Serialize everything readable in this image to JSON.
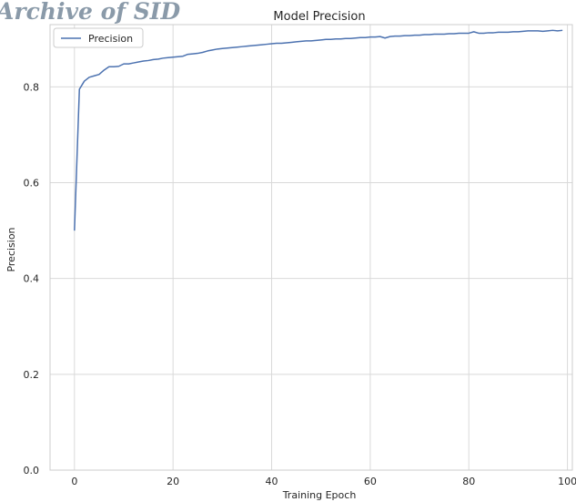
{
  "watermark": "Archive of SID",
  "chart_data": {
    "type": "line",
    "title": "Model Precision",
    "xlabel": "Training Epoch",
    "ylabel": "Precision",
    "xlim": [
      -4.95,
      101
    ],
    "ylim": [
      0.0,
      0.93
    ],
    "xticks": [
      0,
      20,
      40,
      60,
      80,
      100
    ],
    "xtick_labels": [
      "0",
      "20",
      "40",
      "60",
      "80",
      "100"
    ],
    "yticks": [
      0.0,
      0.2,
      0.4,
      0.6,
      0.8
    ],
    "ytick_labels": [
      "0.0",
      "0.2",
      "0.4",
      "0.6",
      "0.8"
    ],
    "grid": true,
    "legend": "top-left",
    "colors": {
      "line": "#4c72b0",
      "grid": "#d9d9d9"
    },
    "series": [
      {
        "name": "Precision",
        "x": [
          0,
          1,
          2,
          3,
          4,
          5,
          6,
          7,
          8,
          9,
          10,
          11,
          12,
          13,
          14,
          15,
          16,
          17,
          18,
          19,
          20,
          21,
          22,
          23,
          24,
          25,
          26,
          27,
          28,
          29,
          30,
          31,
          32,
          33,
          34,
          35,
          36,
          37,
          38,
          39,
          40,
          41,
          42,
          43,
          44,
          45,
          46,
          47,
          48,
          49,
          50,
          51,
          52,
          53,
          54,
          55,
          56,
          57,
          58,
          59,
          60,
          61,
          62,
          63,
          64,
          65,
          66,
          67,
          68,
          69,
          70,
          71,
          72,
          73,
          74,
          75,
          76,
          77,
          78,
          79,
          80,
          81,
          82,
          83,
          84,
          85,
          86,
          87,
          88,
          89,
          90,
          91,
          92,
          93,
          94,
          95,
          96,
          97,
          98,
          99
        ],
        "y": [
          0.5,
          0.795,
          0.812,
          0.82,
          0.823,
          0.826,
          0.835,
          0.842,
          0.842,
          0.843,
          0.848,
          0.848,
          0.85,
          0.852,
          0.854,
          0.855,
          0.857,
          0.858,
          0.86,
          0.861,
          0.862,
          0.863,
          0.864,
          0.868,
          0.869,
          0.87,
          0.872,
          0.875,
          0.877,
          0.879,
          0.88,
          0.881,
          0.882,
          0.883,
          0.884,
          0.885,
          0.886,
          0.887,
          0.888,
          0.889,
          0.89,
          0.891,
          0.891,
          0.892,
          0.893,
          0.894,
          0.895,
          0.896,
          0.896,
          0.897,
          0.898,
          0.899,
          0.899,
          0.9,
          0.9,
          0.901,
          0.901,
          0.902,
          0.903,
          0.903,
          0.904,
          0.904,
          0.905,
          0.902,
          0.905,
          0.906,
          0.906,
          0.907,
          0.907,
          0.908,
          0.908,
          0.909,
          0.909,
          0.91,
          0.91,
          0.91,
          0.911,
          0.911,
          0.912,
          0.912,
          0.912,
          0.915,
          0.912,
          0.912,
          0.913,
          0.913,
          0.914,
          0.914,
          0.914,
          0.915,
          0.915,
          0.916,
          0.917,
          0.917,
          0.917,
          0.916,
          0.917,
          0.918,
          0.917,
          0.918
        ]
      }
    ]
  }
}
